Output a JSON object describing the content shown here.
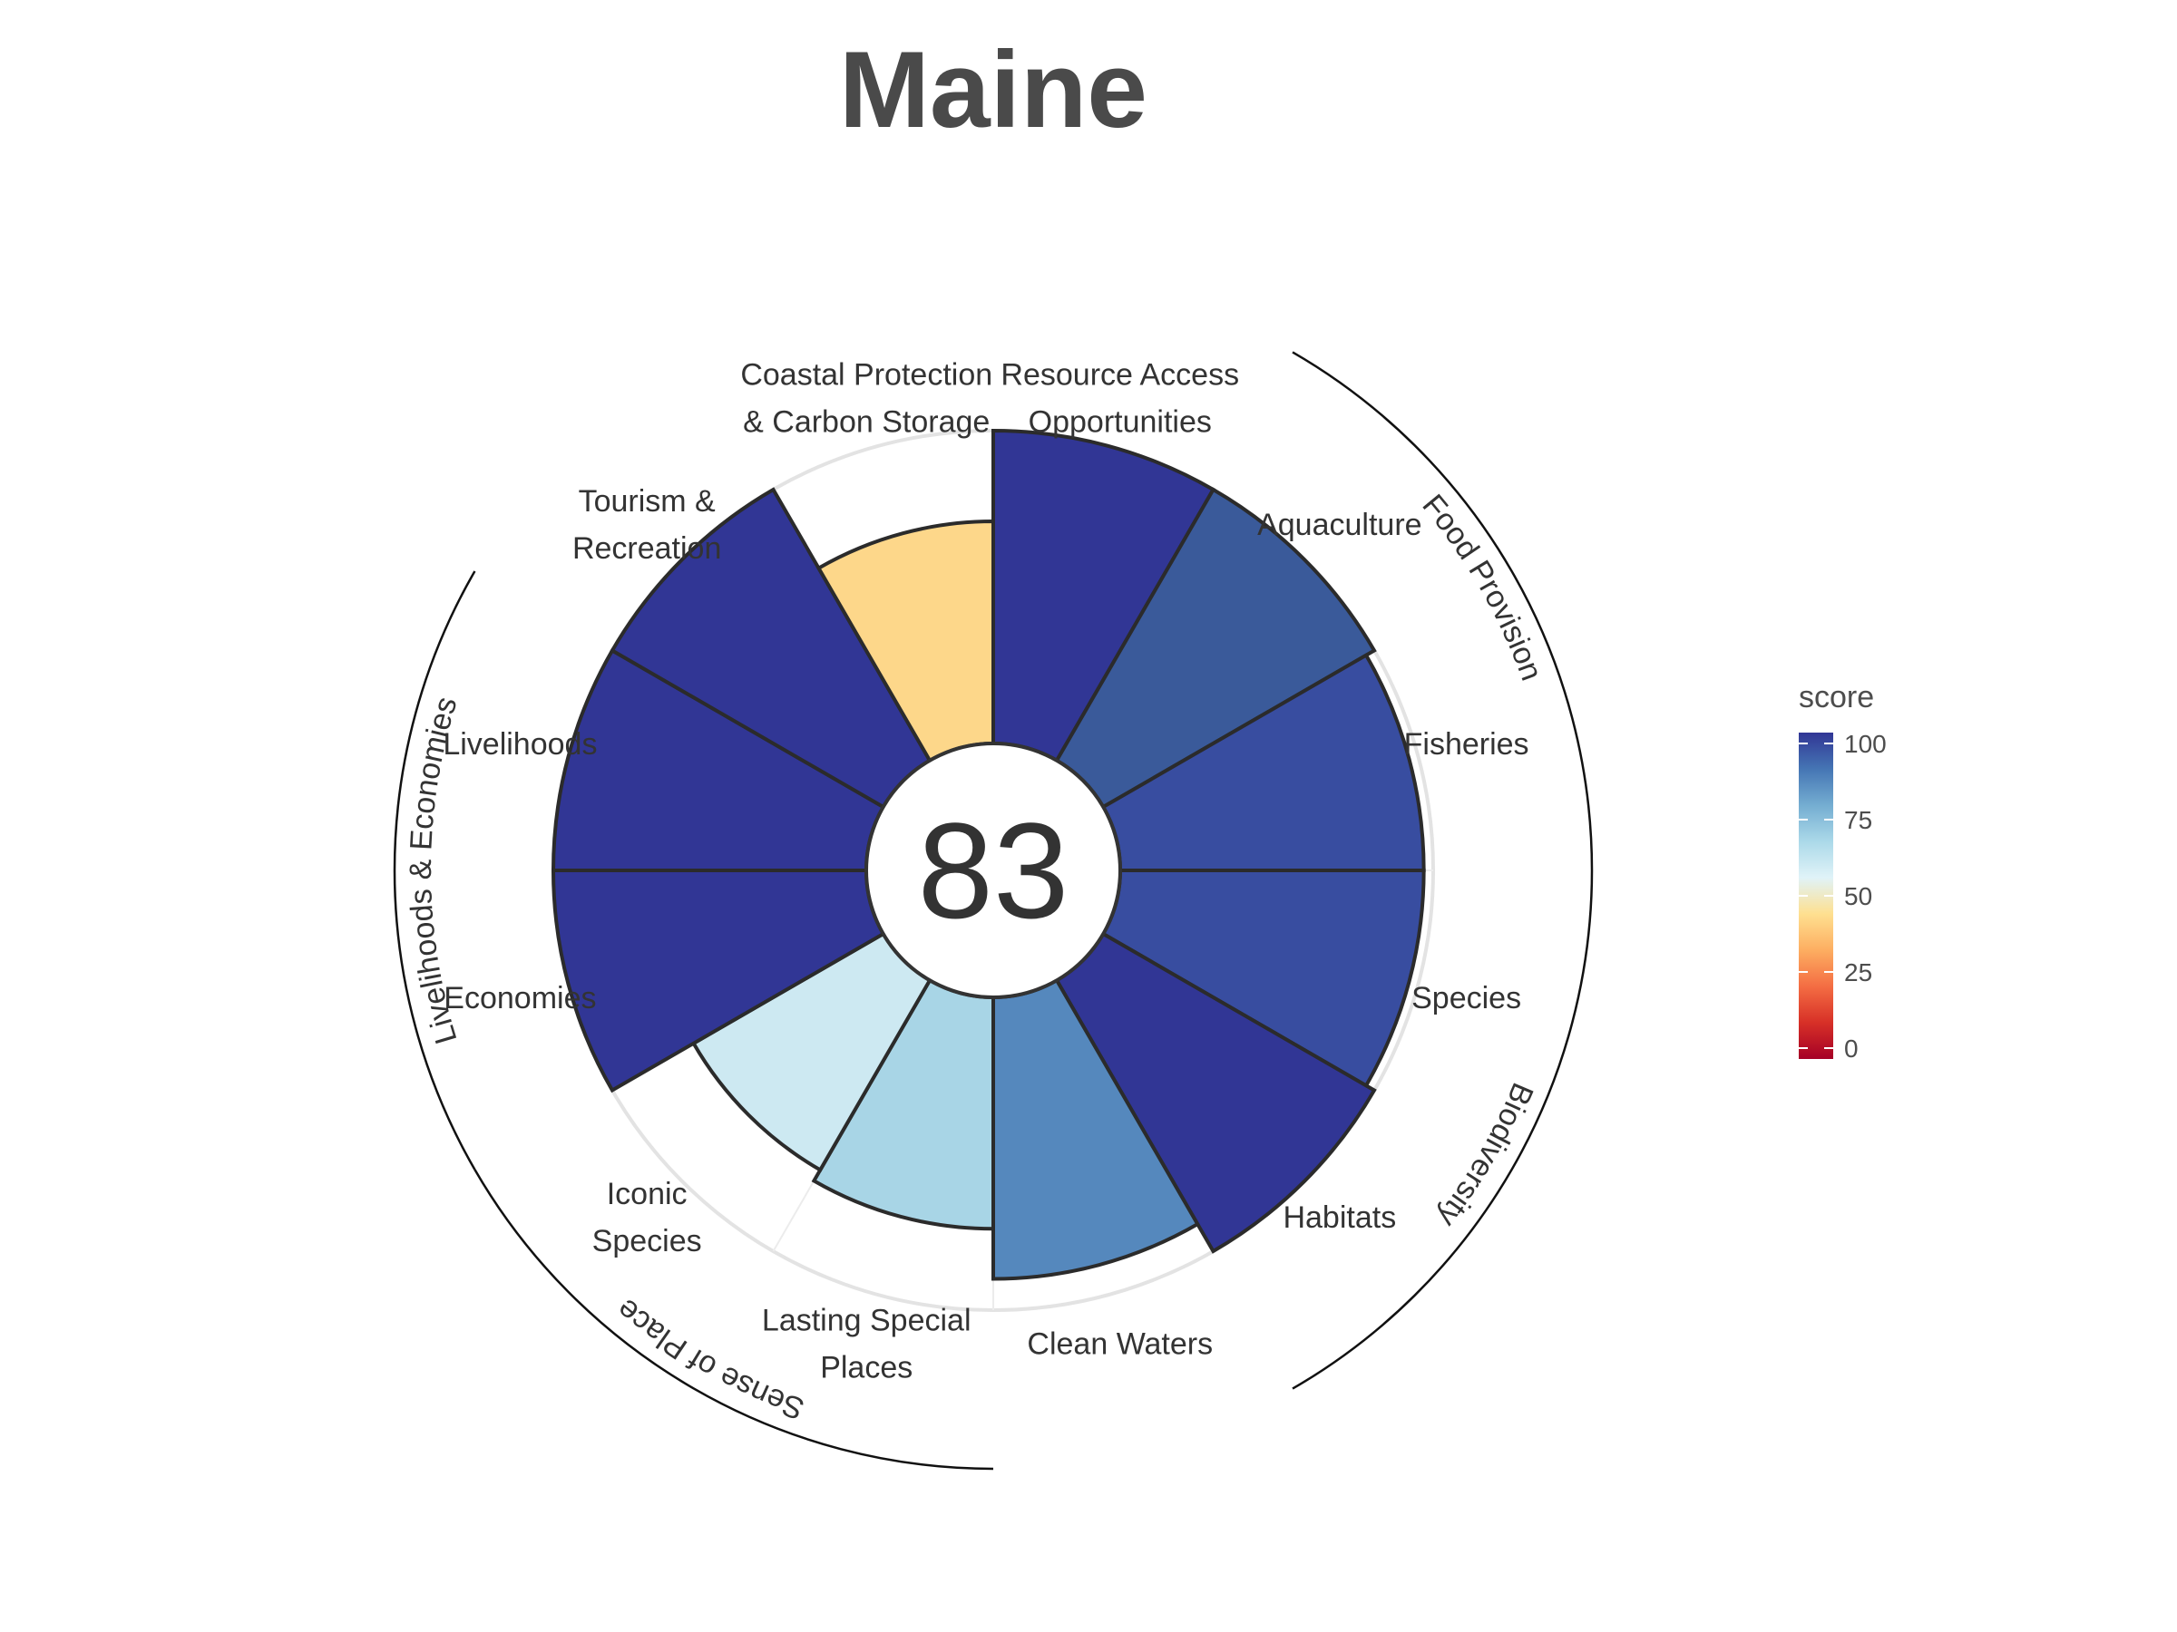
{
  "chart_data": {
    "type": "polar-bar",
    "title": "Maine",
    "overall_score": 83,
    "range": [
      0,
      100
    ],
    "goals": [
      {
        "name": "Resource Access Opportunities",
        "lines": [
          "Resource Access",
          "Opportunities"
        ],
        "score": 100,
        "color": "#313695"
      },
      {
        "name": "Aquaculture",
        "lines": [
          "Aquaculture"
        ],
        "score": 100,
        "color": "#3a5a9a"
      },
      {
        "name": "Fisheries",
        "lines": [
          "Fisheries"
        ],
        "score": 97,
        "color": "#384da0"
      },
      {
        "name": "Species",
        "lines": [
          "Species"
        ],
        "score": 97,
        "color": "#384da0"
      },
      {
        "name": "Habitats",
        "lines": [
          "Habitats"
        ],
        "score": 100,
        "color": "#313695"
      },
      {
        "name": "Clean Waters",
        "lines": [
          "Clean Waters"
        ],
        "score": 90,
        "color": "#5588bd"
      },
      {
        "name": "Lasting Special Places",
        "lines": [
          "Lasting Special",
          "Places"
        ],
        "score": 74,
        "color": "#a8d5e6"
      },
      {
        "name": "Iconic Species",
        "lines": [
          "Iconic",
          "Species"
        ],
        "score": 70,
        "color": "#cde9f2"
      },
      {
        "name": "Economies",
        "lines": [
          "Economies"
        ],
        "score": 100,
        "color": "#313695"
      },
      {
        "name": "Livelihoods",
        "lines": [
          "Livelihoods"
        ],
        "score": 100,
        "color": "#313695"
      },
      {
        "name": "Tourism & Recreation",
        "lines": [
          "Tourism &",
          "Recreation"
        ],
        "score": 100,
        "color": "#313695"
      },
      {
        "name": "Coastal Protection & Carbon Storage",
        "lines": [
          "Coastal Protection",
          "& Carbon Storage"
        ],
        "score": 71,
        "color": "#fdd78a"
      }
    ],
    "groups": [
      {
        "name": "Food Provision"
      },
      {
        "name": "Biodiversity"
      },
      {
        "name": "Sense of Place"
      },
      {
        "name": "Livelihoods & Economies"
      }
    ],
    "legend": {
      "title": "score",
      "ticks": [
        "100",
        "75",
        "50",
        "25",
        "0"
      ],
      "colors": [
        "#a50026",
        "#d73027",
        "#f46d43",
        "#fdae61",
        "#fee090",
        "#e0f3f8",
        "#abd9e9",
        "#74add1",
        "#4575b4",
        "#313695"
      ]
    },
    "grid": true,
    "legend_position": "right"
  }
}
